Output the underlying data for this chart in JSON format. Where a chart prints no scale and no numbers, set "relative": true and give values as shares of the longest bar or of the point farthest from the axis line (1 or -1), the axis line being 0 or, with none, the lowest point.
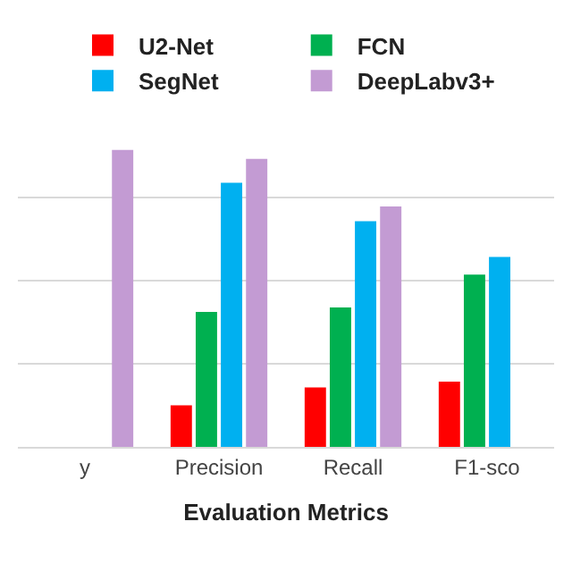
{
  "chart_data": {
    "type": "bar",
    "xlabel": "Evaluation Metrics",
    "categories": [
      "y",
      "Precision",
      "Recall",
      "F1-sco"
    ],
    "relative": true,
    "grid": "y",
    "legend": "top",
    "series": [
      {
        "name": "U2-Net",
        "color": "#ff0000",
        "values": [
          null,
          0.14,
          0.2,
          0.22
        ]
      },
      {
        "name": "FCN",
        "color": "#00b050",
        "values": [
          null,
          0.455,
          0.47,
          0.58
        ]
      },
      {
        "name": "SegNet",
        "color": "#00b0f0",
        "values": [
          null,
          0.89,
          0.76,
          0.64
        ]
      },
      {
        "name": "DeepLabv3+",
        "color": "#c39bd3",
        "values": [
          1,
          0.97,
          0.81,
          null
        ]
      }
    ]
  }
}
